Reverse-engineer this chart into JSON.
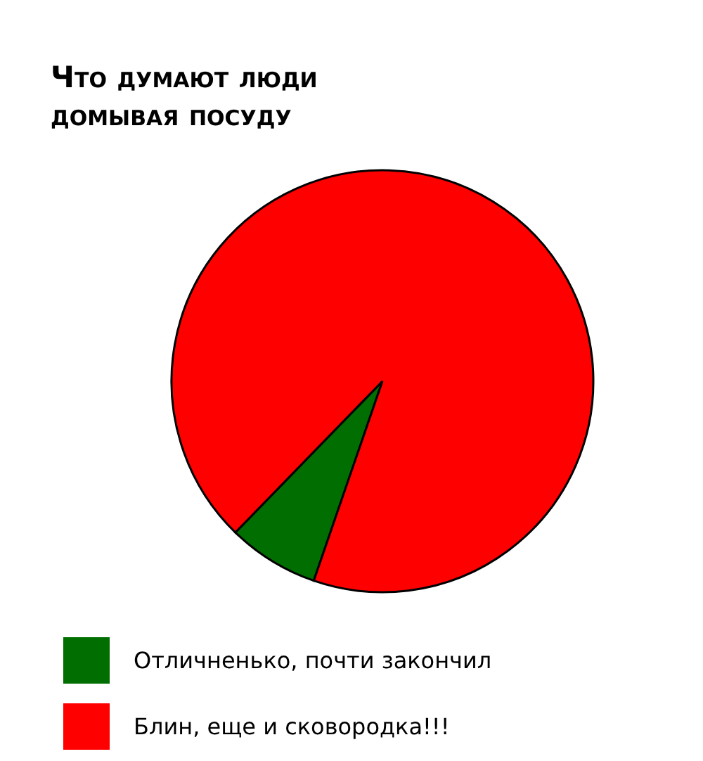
{
  "chart_data": {
    "type": "pie",
    "title": "Что думают люди домывая посуду",
    "categories": [
      "Отличненько, почти закончил",
      "Блин, еще и сковородка!!!"
    ],
    "values": [
      7,
      93
    ],
    "colors": [
      "#006e00",
      "#ff0000"
    ],
    "legend": "bottom"
  }
}
